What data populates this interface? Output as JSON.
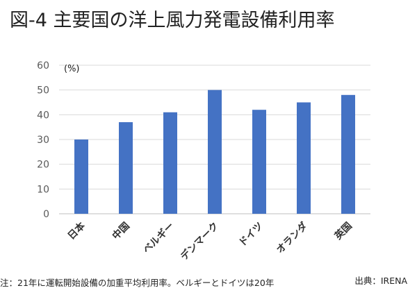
{
  "page": {
    "title": "図-4 主要国の洋上風力発電設備利用率",
    "note": "注：21年に運転開始設備の加重平均利用率。ベルギーとドイツは20年",
    "source": "出典：IRENA"
  },
  "chart_data": {
    "type": "bar",
    "title": "図-4 主要国の洋上風力発電設備利用率",
    "unit_label": "(%)",
    "xlabel": "",
    "ylabel": "",
    "categories": [
      "日本",
      "中国",
      "ベルギー",
      "デンマーク",
      "ドイツ",
      "オランダ",
      "英国"
    ],
    "values": [
      30,
      37,
      41,
      50,
      42,
      45,
      48
    ],
    "ylim": [
      0,
      60
    ],
    "yticks": [
      0,
      10,
      20,
      30,
      40,
      50,
      60
    ],
    "grid": true,
    "legend": "none",
    "colors": {
      "bar": "#4472c4",
      "grid": "#d9d9d9",
      "axis": "#bfbfbf",
      "text": "#595959"
    }
  }
}
